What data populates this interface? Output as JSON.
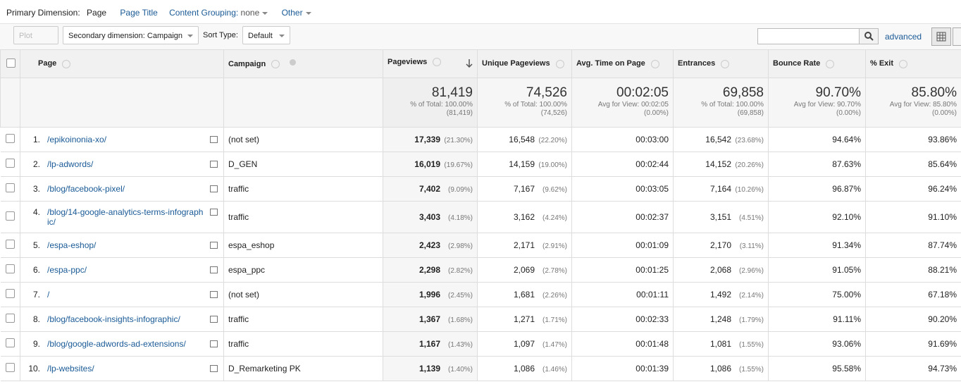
{
  "toolbar": {
    "primary_label": "Primary Dimension:",
    "primary_current": "Page",
    "primary_page_title": "Page Title",
    "content_grouping_label": "Content Grouping:",
    "content_grouping_value": "none",
    "other": "Other",
    "plot_rows": "Plot Rows",
    "secondary": "Secondary dimension: Campaign",
    "sort_label": "Sort Type:",
    "sort_value": "Default",
    "advanced": "advanced"
  },
  "table": {
    "columns": [
      "Page",
      "Campaign",
      "Pageviews",
      "Unique Pageviews",
      "Avg. Time on Page",
      "Entrances",
      "Bounce Rate",
      "% Exit"
    ],
    "totals": [
      {
        "main": "81,419",
        "sub1": "% of Total: 100.00%",
        "sub2": "(81,419)"
      },
      {
        "main": "74,526",
        "sub1": "% of Total: 100.00%",
        "sub2": "(74,526)"
      },
      {
        "main": "00:02:05",
        "sub1": "Avg for View: 00:02:05",
        "sub2": "(0.00%)"
      },
      {
        "main": "69,858",
        "sub1": "% of Total: 100.00%",
        "sub2": "(69,858)"
      },
      {
        "main": "90.70%",
        "sub1": "Avg for View: 90.70%",
        "sub2": "(0.00%)"
      },
      {
        "main": "85.80%",
        "sub1": "Avg for View: 85.80%",
        "sub2": "(0.00%)"
      }
    ],
    "rows": [
      {
        "index": "1.",
        "page": "/epikoinonia-xo/",
        "campaign": "(not set)",
        "pageviews": "17,339",
        "pageviews_pct": "(21.30%)",
        "unique": "16,548",
        "unique_pct": "(22.20%)",
        "time": "00:03:00",
        "entrances": "16,542",
        "entrances_pct": "(23.68%)",
        "bounce": "94.64%",
        "exit": "93.86%"
      },
      {
        "index": "2.",
        "page": "/lp-adwords/",
        "campaign": "D_GEN",
        "pageviews": "16,019",
        "pageviews_pct": "(19.67%)",
        "unique": "14,159",
        "unique_pct": "(19.00%)",
        "time": "00:02:44",
        "entrances": "14,152",
        "entrances_pct": "(20.26%)",
        "bounce": "87.63%",
        "exit": "85.64%"
      },
      {
        "index": "3.",
        "page": "/blog/facebook-pixel/",
        "campaign": "traffic",
        "pageviews": "7,402",
        "pageviews_pct": "(9.09%)",
        "unique": "7,167",
        "unique_pct": "(9.62%)",
        "time": "00:03:05",
        "entrances": "7,164",
        "entrances_pct": "(10.26%)",
        "bounce": "96.87%",
        "exit": "96.24%"
      },
      {
        "index": "4.",
        "page": "/blog/14-google-analytics-terms-infographic/",
        "campaign": "traffic",
        "pageviews": "3,403",
        "pageviews_pct": "(4.18%)",
        "unique": "3,162",
        "unique_pct": "(4.24%)",
        "time": "00:02:37",
        "entrances": "3,151",
        "entrances_pct": "(4.51%)",
        "bounce": "92.10%",
        "exit": "91.10%"
      },
      {
        "index": "5.",
        "page": "/espa-eshop/",
        "campaign": "espa_eshop",
        "pageviews": "2,423",
        "pageviews_pct": "(2.98%)",
        "unique": "2,171",
        "unique_pct": "(2.91%)",
        "time": "00:01:09",
        "entrances": "2,170",
        "entrances_pct": "(3.11%)",
        "bounce": "91.34%",
        "exit": "87.74%"
      },
      {
        "index": "6.",
        "page": "/espa-ppc/",
        "campaign": "espa_ppc",
        "pageviews": "2,298",
        "pageviews_pct": "(2.82%)",
        "unique": "2,069",
        "unique_pct": "(2.78%)",
        "time": "00:01:25",
        "entrances": "2,068",
        "entrances_pct": "(2.96%)",
        "bounce": "91.05%",
        "exit": "88.21%"
      },
      {
        "index": "7.",
        "page": "/",
        "campaign": "(not set)",
        "pageviews": "1,996",
        "pageviews_pct": "(2.45%)",
        "unique": "1,681",
        "unique_pct": "(2.26%)",
        "time": "00:01:11",
        "entrances": "1,492",
        "entrances_pct": "(2.14%)",
        "bounce": "75.00%",
        "exit": "67.18%"
      },
      {
        "index": "8.",
        "page": "/blog/facebook-insights-infographic/",
        "campaign": "traffic",
        "pageviews": "1,367",
        "pageviews_pct": "(1.68%)",
        "unique": "1,271",
        "unique_pct": "(1.71%)",
        "time": "00:02:33",
        "entrances": "1,248",
        "entrances_pct": "(1.79%)",
        "bounce": "91.11%",
        "exit": "90.20%"
      },
      {
        "index": "9.",
        "page": "/blog/google-adwords-ad-extensions/",
        "campaign": "traffic",
        "pageviews": "1,167",
        "pageviews_pct": "(1.43%)",
        "unique": "1,097",
        "unique_pct": "(1.47%)",
        "time": "00:01:48",
        "entrances": "1,081",
        "entrances_pct": "(1.55%)",
        "bounce": "93.06%",
        "exit": "91.69%"
      },
      {
        "index": "10.",
        "page": "/lp-websites/",
        "campaign": "D_Remarketing PK",
        "pageviews": "1,139",
        "pageviews_pct": "(1.40%)",
        "unique": "1,086",
        "unique_pct": "(1.46%)",
        "time": "00:01:39",
        "entrances": "1,086",
        "entrances_pct": "(1.55%)",
        "bounce": "95.58%",
        "exit": "94.73%"
      }
    ]
  }
}
